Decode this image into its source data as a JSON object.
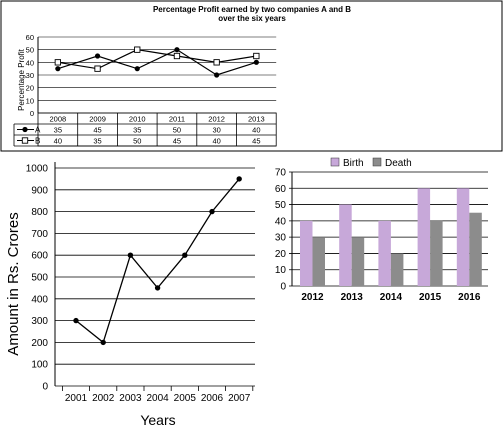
{
  "chart_data": [
    {
      "type": "line",
      "title_line1": "Percentage Profit earned by two companies A and B",
      "title_line2": "over the six years",
      "ylabel": "Percentage Profit",
      "ylim": [
        0,
        60
      ],
      "yticks": [
        "0",
        "10",
        "20",
        "30",
        "40",
        "50",
        "60"
      ],
      "categories": [
        "2008",
        "2009",
        "2010",
        "2011",
        "2012",
        "2013"
      ],
      "series": [
        {
          "name": "A",
          "marker": "filled-circle",
          "values": [
            35,
            45,
            35,
            50,
            30,
            40
          ]
        },
        {
          "name": "B",
          "marker": "open-square",
          "values": [
            40,
            35,
            50,
            45,
            40,
            45
          ]
        }
      ],
      "table": {
        "rows": [
          {
            "label": "A",
            "values": [
              "35",
              "45",
              "35",
              "50",
              "30",
              "40"
            ]
          },
          {
            "label": "B",
            "values": [
              "40",
              "35",
              "50",
              "45",
              "40",
              "45"
            ]
          }
        ]
      }
    },
    {
      "type": "line",
      "title": "",
      "xlabel": "Years",
      "ylabel": "Amount in Rs. Crores",
      "ylim": [
        0,
        1000
      ],
      "yticks": [
        "0",
        "100",
        "200",
        "300",
        "400",
        "500",
        "600",
        "700",
        "800",
        "900",
        "1000"
      ],
      "categories": [
        "2001",
        "2002",
        "2003",
        "2004",
        "2005",
        "2006",
        "2007"
      ],
      "series": [
        {
          "name": "",
          "values": [
            300,
            200,
            600,
            450,
            600,
            800,
            950
          ]
        }
      ]
    },
    {
      "type": "bar",
      "title": "",
      "ylim": [
        0,
        70
      ],
      "yticks": [
        "0",
        "10",
        "20",
        "30",
        "40",
        "50",
        "60",
        "70"
      ],
      "categories": [
        "2012",
        "2013",
        "2014",
        "2015",
        "2016"
      ],
      "legend": "top",
      "series": [
        {
          "name": "Birth",
          "color": "#c7a8d9",
          "values": [
            40,
            50,
            40,
            60,
            60
          ]
        },
        {
          "name": "Death",
          "color": "#8c8c8c",
          "values": [
            30,
            30,
            20,
            40,
            45
          ]
        }
      ]
    }
  ]
}
